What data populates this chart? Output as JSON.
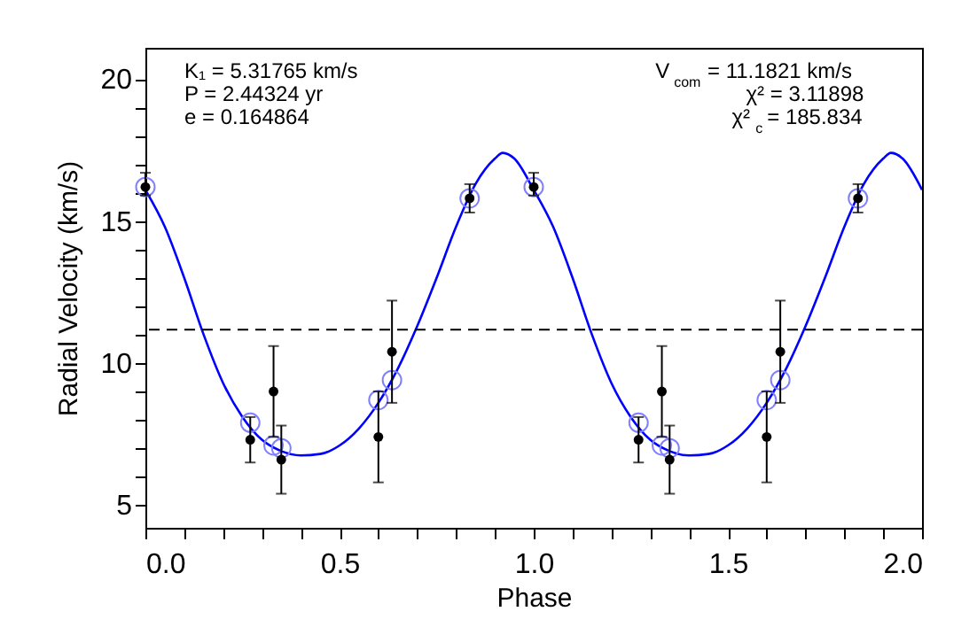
{
  "chart_data": {
    "type": "scatter",
    "xlabel": "Phase",
    "ylabel": "Radial Velocity (km/s)",
    "xlim": [
      0,
      2
    ],
    "ylim": [
      4.2,
      21.1
    ],
    "xticks": [
      {
        "value": 0,
        "label": "0.0"
      },
      {
        "value": 0.1,
        "label": null
      },
      {
        "value": 0.2,
        "label": null
      },
      {
        "value": 0.3,
        "label": null
      },
      {
        "value": 0.4,
        "label": null
      },
      {
        "value": 0.5,
        "label": "0.5"
      },
      {
        "value": 0.6,
        "label": null
      },
      {
        "value": 0.7,
        "label": null
      },
      {
        "value": 0.8,
        "label": null
      },
      {
        "value": 0.9,
        "label": null
      },
      {
        "value": 1,
        "label": "1.0"
      },
      {
        "value": 1.1,
        "label": null
      },
      {
        "value": 1.2,
        "label": null
      },
      {
        "value": 1.3,
        "label": null
      },
      {
        "value": 1.4,
        "label": null
      },
      {
        "value": 1.5,
        "label": "1.5"
      },
      {
        "value": 1.6,
        "label": null
      },
      {
        "value": 1.7,
        "label": null
      },
      {
        "value": 1.8,
        "label": null
      },
      {
        "value": 1.9,
        "label": null
      },
      {
        "value": 2,
        "label": "2.0"
      }
    ],
    "yticks": [
      5,
      {
        "value": 6,
        "label": null
      },
      {
        "value": 7,
        "label": null
      },
      {
        "value": 8,
        "label": null
      },
      {
        "value": 9,
        "label": null
      },
      10,
      {
        "value": 11,
        "label": null
      },
      {
        "value": 12,
        "label": null
      },
      {
        "value": 13,
        "label": null
      },
      {
        "value": 14,
        "label": null
      },
      15,
      {
        "value": 16,
        "label": null
      },
      {
        "value": 17,
        "label": null
      },
      {
        "value": 18,
        "label": null
      },
      {
        "value": 19,
        "label": null
      },
      20
    ],
    "grid": false,
    "annotations": [
      "K₁ = 5.31765 km/s",
      "P = 2.44324 yr",
      "e = 0.164864",
      "V$_{com}$ = 11.1821 km/s",
      "χ² = 3.11898",
      "χ²$_{c}$ = 185.834"
    ],
    "ref_lines": [
      {
        "axis": "y",
        "value": 11.18,
        "color": "#000000",
        "line_style": "dashed"
      }
    ],
    "series": [
      {
        "type": "line",
        "color": "#0000ff",
        "line_style": "solid",
        "marker": "none",
        "x": [
          0,
          0.05,
          0.1,
          0.15,
          0.2,
          0.25,
          0.3,
          0.35,
          0.4,
          0.45,
          0.5,
          0.55,
          0.6,
          0.65,
          0.7,
          0.75,
          0.8,
          0.85,
          0.9,
          0.92,
          0.95,
          1.0,
          1.05,
          1.1,
          1.15,
          1.2,
          1.25,
          1.3,
          1.35,
          1.4,
          1.45,
          1.5,
          1.55,
          1.6,
          1.65,
          1.7,
          1.75,
          1.8,
          1.85,
          1.9,
          1.92,
          1.95,
          2.0
        ],
        "values": [
          16.1,
          14.8,
          13.0,
          11.0,
          9.3,
          8.1,
          7.3,
          6.9,
          6.75,
          6.8,
          7.1,
          7.7,
          8.6,
          9.8,
          11.3,
          13.0,
          14.8,
          16.3,
          17.2,
          17.4,
          17.2,
          16.1,
          14.8,
          13.0,
          11.0,
          9.3,
          8.1,
          7.3,
          6.9,
          6.75,
          6.8,
          7.1,
          7.7,
          8.6,
          9.8,
          11.3,
          13.0,
          14.8,
          16.3,
          17.2,
          17.4,
          17.2,
          16.1
        ]
      },
      {
        "color": "#8080ff",
        "marker": "circle",
        "x": [
          0,
          0.27,
          0.33,
          0.35,
          0.6,
          0.635,
          0.835,
          1.0,
          1.27,
          1.33,
          1.35,
          1.6,
          1.635,
          1.835
        ],
        "values": [
          16.2,
          7.9,
          7.1,
          7.0,
          8.7,
          9.4,
          15.8,
          16.2,
          7.9,
          7.1,
          7.0,
          8.7,
          9.4,
          15.8
        ]
      },
      {
        "color": "#000000",
        "marker": "circle",
        "x": [
          0,
          0.27,
          0.33,
          0.35,
          0.6,
          0.635,
          0.835,
          1.0,
          1.27,
          1.33,
          1.35,
          1.6,
          1.635,
          1.835
        ],
        "values": [
          16.2,
          7.3,
          9.0,
          6.6,
          7.4,
          10.4,
          15.8,
          16.2,
          7.3,
          9.0,
          6.6,
          7.4,
          10.4,
          15.8
        ],
        "errors": [
          [
            15.9,
            16.7
          ],
          [
            6.5,
            8.1
          ],
          [
            7.4,
            10.6
          ],
          [
            5.4,
            7.8
          ],
          [
            5.8,
            9.0
          ],
          [
            8.6,
            12.2
          ],
          [
            15.3,
            16.3
          ],
          [
            15.9,
            16.7
          ],
          [
            6.5,
            8.1
          ],
          [
            7.4,
            10.6
          ],
          [
            5.4,
            7.8
          ],
          [
            5.8,
            9.0
          ],
          [
            8.6,
            12.2
          ],
          [
            15.3,
            16.3
          ]
        ]
      }
    ]
  }
}
